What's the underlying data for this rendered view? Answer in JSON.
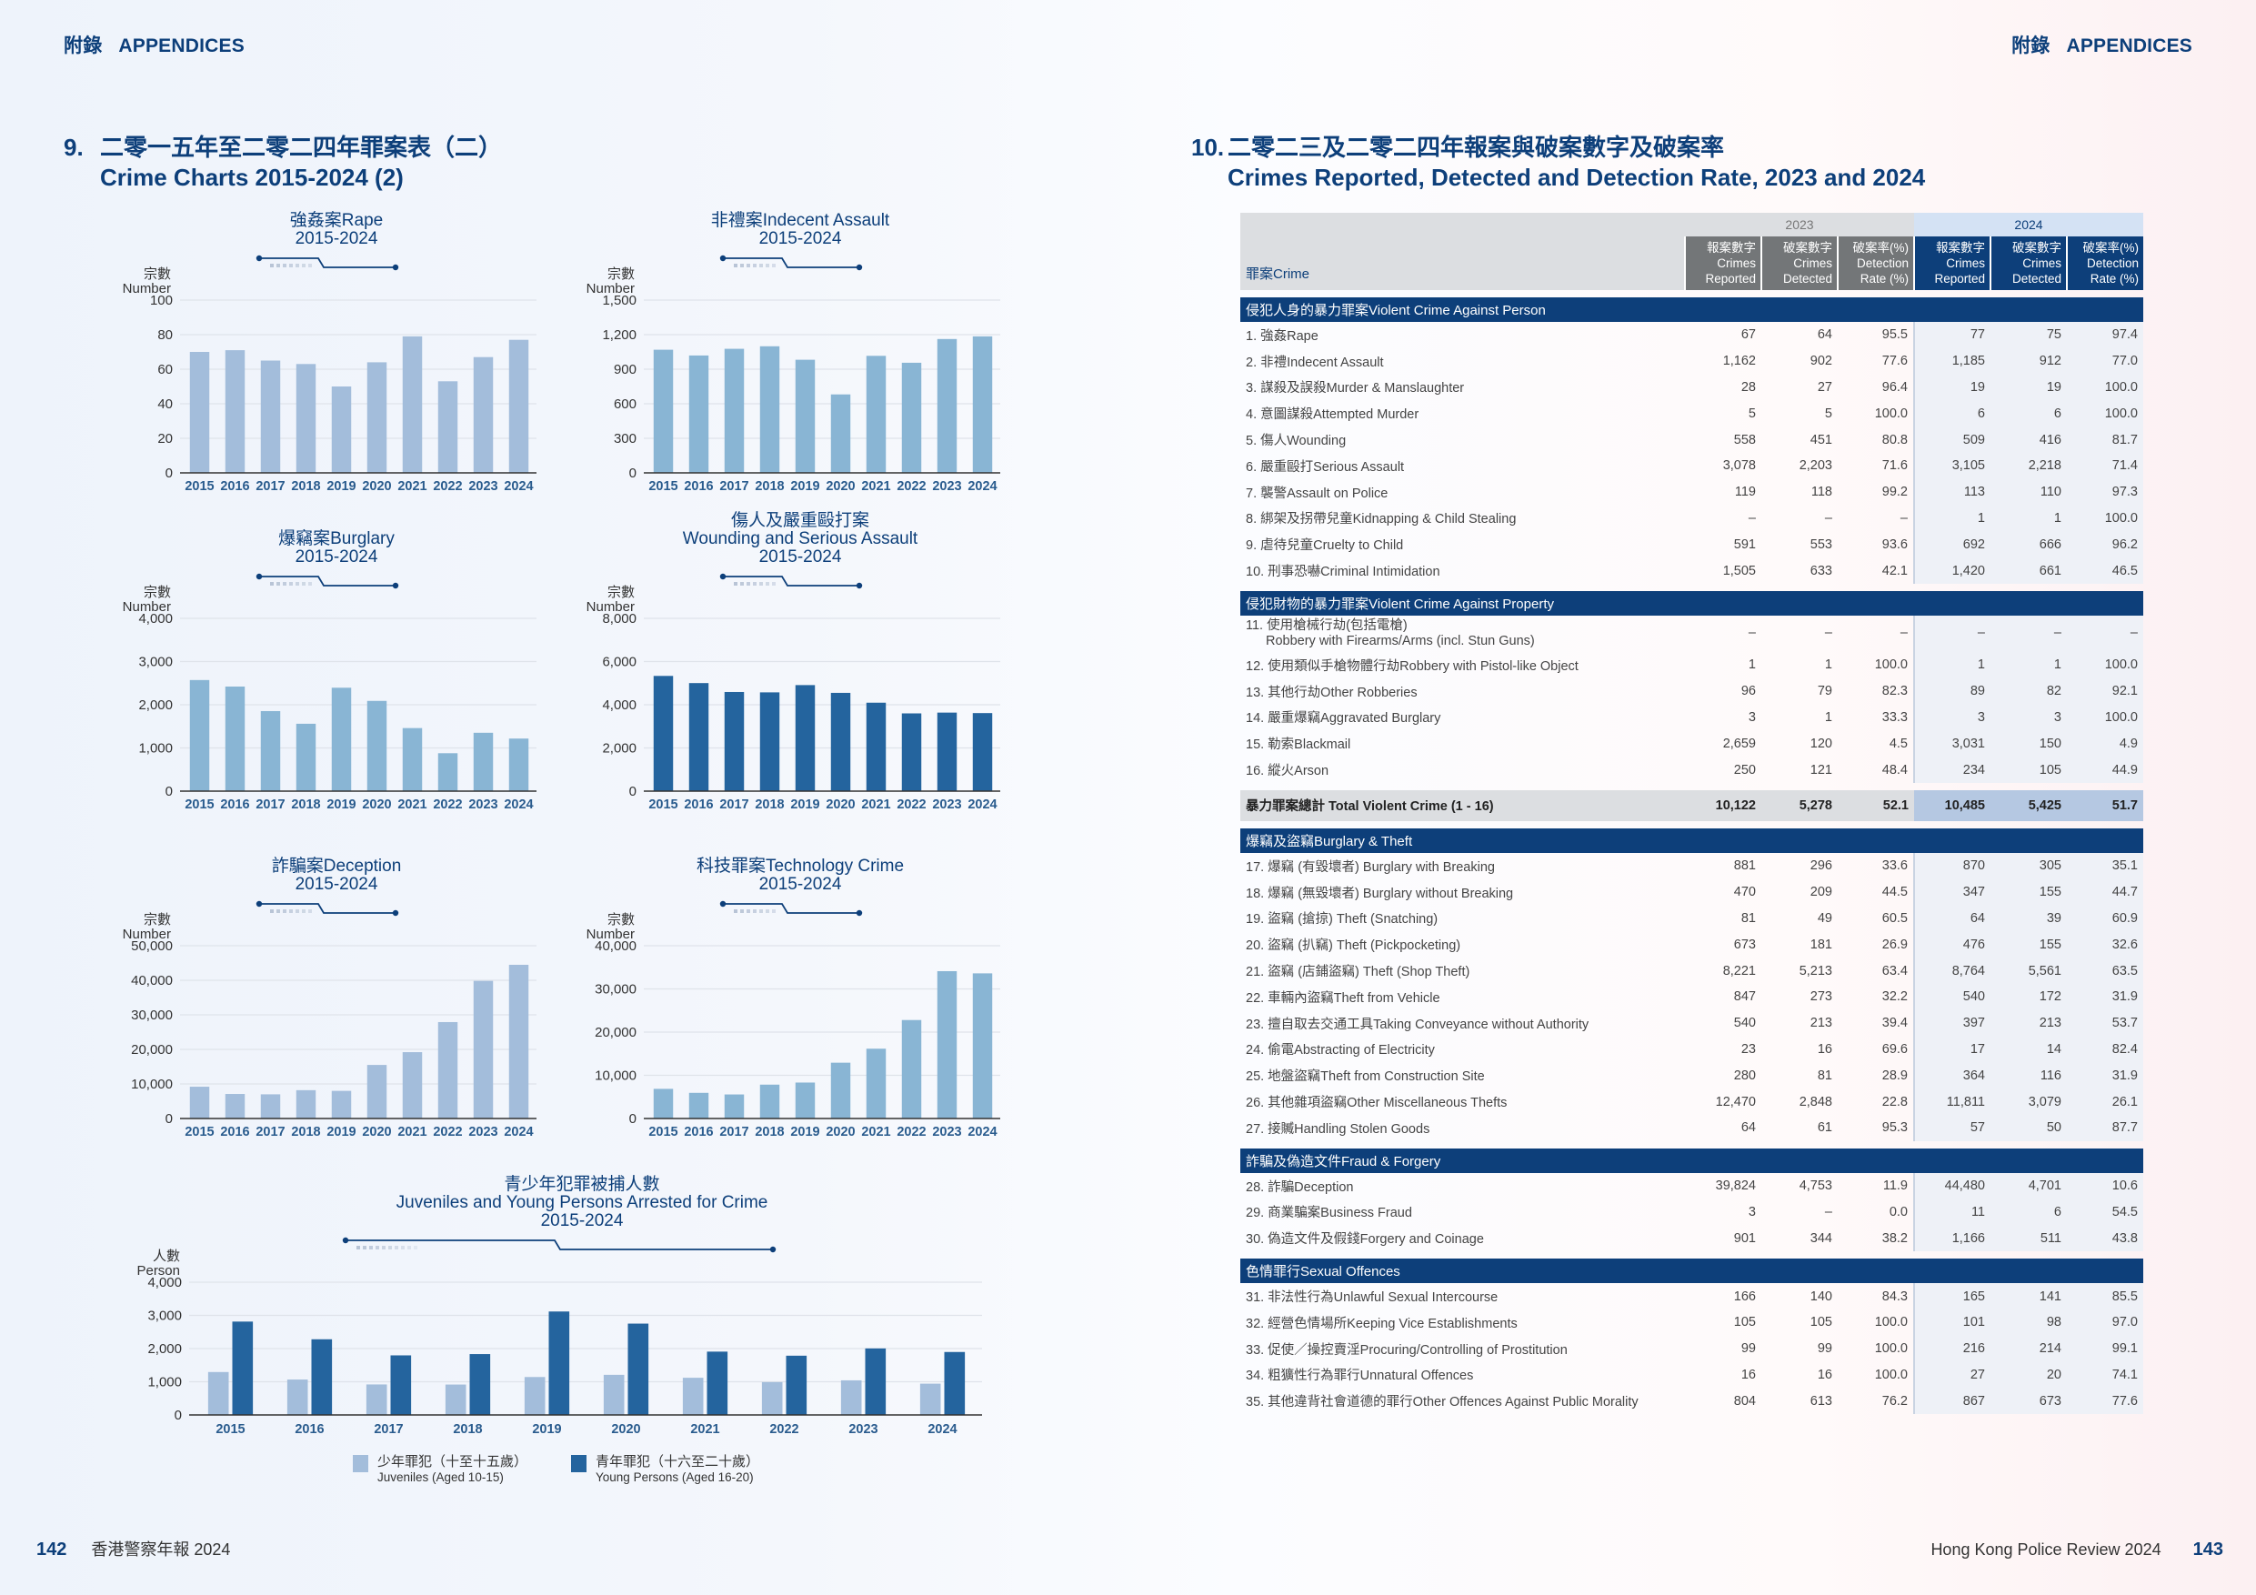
{
  "header": {
    "left": {
      "zh": "附錄",
      "en": "APPENDICES"
    },
    "right": {
      "zh": "附錄",
      "en": "APPENDICES"
    }
  },
  "section9": {
    "number": "9.",
    "title_zh": "二零一五年至二零二四年罪案表（二）",
    "title_en": "Crime Charts 2015-2024 (2)"
  },
  "section10": {
    "number": "10.",
    "title_zh": "二零二三及二零二四年報案與破案數字及破案率",
    "title_en": "Crimes Reported, Detected and Detection Rate, 2023 and 2024"
  },
  "colors": {
    "navy": "#0d3f7a",
    "light_bar": "#a3bddb",
    "mid_bar": "#89b5d4",
    "dark_bar": "#24649e"
  },
  "chart_data": [
    {
      "id": "rape",
      "type": "bar",
      "title_zh": "強姦案Rape",
      "title_en": "",
      "period": "2015-2024",
      "ylabel_zh": "宗數",
      "ylabel_en": "Number",
      "categories": [
        "2015",
        "2016",
        "2017",
        "2018",
        "2019",
        "2020",
        "2021",
        "2022",
        "2023",
        "2024"
      ],
      "values": [
        70,
        71,
        65,
        63,
        50,
        64,
        79,
        53,
        67,
        77
      ],
      "ylim": [
        0,
        100
      ],
      "yticks": [
        0,
        20,
        40,
        60,
        80,
        100
      ],
      "ytick_labels": [
        "0",
        "20",
        "40",
        "60",
        "80",
        "100"
      ],
      "color": "#a3bddb",
      "grid": true
    },
    {
      "id": "indecent",
      "type": "bar",
      "title_zh": "非禮案Indecent Assault",
      "title_en": "",
      "period": "2015-2024",
      "ylabel_zh": "宗數",
      "ylabel_en": "Number",
      "categories": [
        "2015",
        "2016",
        "2017",
        "2018",
        "2019",
        "2020",
        "2021",
        "2022",
        "2023",
        "2024"
      ],
      "values": [
        1069,
        1019,
        1077,
        1099,
        982,
        681,
        1016,
        956,
        1162,
        1185
      ],
      "ylim": [
        0,
        1500
      ],
      "yticks": [
        0,
        300,
        600,
        900,
        1200,
        1500
      ],
      "ytick_labels": [
        "0",
        "300",
        "600",
        "900",
        "1,200",
        "1,500"
      ],
      "color": "#89b5d4",
      "grid": true
    },
    {
      "id": "burglary",
      "type": "bar",
      "title_zh": "爆竊案Burglary",
      "title_en": "",
      "period": "2015-2024",
      "ylabel_zh": "宗數",
      "ylabel_en": "Number",
      "categories": [
        "2015",
        "2016",
        "2017",
        "2018",
        "2019",
        "2020",
        "2021",
        "2022",
        "2023",
        "2024"
      ],
      "values": [
        2572,
        2421,
        1853,
        1560,
        2394,
        2089,
        1460,
        878,
        1351,
        1217
      ],
      "ylim": [
        0,
        4000
      ],
      "yticks": [
        0,
        1000,
        2000,
        3000,
        4000
      ],
      "ytick_labels": [
        "0",
        "1,000",
        "2,000",
        "3,000",
        "4,000"
      ],
      "color": "#89b5d4",
      "grid": true
    },
    {
      "id": "wounding",
      "type": "bar",
      "title_zh": "傷人及嚴重毆打案",
      "title_en": "Wounding and Serious Assault",
      "period": "2015-2024",
      "ylabel_zh": "宗數",
      "ylabel_en": "Number",
      "categories": [
        "2015",
        "2016",
        "2017",
        "2018",
        "2019",
        "2020",
        "2021",
        "2022",
        "2023",
        "2024"
      ],
      "values": [
        5335,
        5003,
        4590,
        4573,
        4910,
        4550,
        4095,
        3600,
        3636,
        3614
      ],
      "ylim": [
        0,
        8000
      ],
      "yticks": [
        0,
        2000,
        4000,
        6000,
        8000
      ],
      "ytick_labels": [
        "0",
        "2,000",
        "4,000",
        "6,000",
        "8,000"
      ],
      "color": "#24649e",
      "grid": true
    },
    {
      "id": "deception",
      "type": "bar",
      "title_zh": "詐騙案Deception",
      "title_en": "",
      "period": "2015-2024",
      "ylabel_zh": "宗數",
      "ylabel_en": "Number",
      "categories": [
        "2015",
        "2016",
        "2017",
        "2018",
        "2019",
        "2020",
        "2021",
        "2022",
        "2023",
        "2024"
      ],
      "values": [
        9200,
        7100,
        7000,
        8200,
        8000,
        15500,
        19200,
        27900,
        39824,
        44480
      ],
      "ylim": [
        0,
        50000
      ],
      "yticks": [
        0,
        10000,
        20000,
        30000,
        40000,
        50000
      ],
      "ytick_labels": [
        "0",
        "10,000",
        "20,000",
        "30,000",
        "40,000",
        "50,000"
      ],
      "color": "#a3bddb",
      "grid": true
    },
    {
      "id": "technology",
      "type": "bar",
      "title_zh": "科技罪案Technology Crime",
      "title_en": "",
      "period": "2015-2024",
      "ylabel_zh": "宗數",
      "ylabel_en": "Number",
      "categories": [
        "2015",
        "2016",
        "2017",
        "2018",
        "2019",
        "2020",
        "2021",
        "2022",
        "2023",
        "2024"
      ],
      "values": [
        6862,
        5939,
        5567,
        7838,
        8322,
        12916,
        16159,
        22797,
        34112,
        33603
      ],
      "ylim": [
        0,
        40000
      ],
      "yticks": [
        0,
        10000,
        20000,
        30000,
        40000
      ],
      "ytick_labels": [
        "0",
        "10,000",
        "20,000",
        "30,000",
        "40,000"
      ],
      "color": "#89b5d4",
      "grid": true
    },
    {
      "id": "juveniles",
      "type": "bar",
      "title_zh": "青少年犯罪被捕人數",
      "title_en": "Juveniles and Young Persons Arrested for Crime",
      "period": "2015-2024",
      "ylabel_zh": "人數",
      "ylabel_en": "Person",
      "categories": [
        "2015",
        "2016",
        "2017",
        "2018",
        "2019",
        "2020",
        "2021",
        "2022",
        "2023",
        "2024"
      ],
      "series": [
        {
          "name_zh": "少年罪犯（十至十五歲）",
          "name_en": "Juveniles (Aged 10-15)",
          "values": [
            1293,
            1067,
            919,
            916,
            1143,
            1209,
            1120,
            990,
            1043,
            943
          ],
          "color": "#a3bddb"
        },
        {
          "name_zh": "青年罪犯（十六至二十歲）",
          "name_en": "Young Persons (Aged 16-20)",
          "values": [
            2813,
            2280,
            1795,
            1834,
            3117,
            2752,
            1908,
            1785,
            2004,
            1897
          ],
          "color": "#24649e"
        }
      ],
      "ylim": [
        0,
        4000
      ],
      "yticks": [
        0,
        1000,
        2000,
        3000,
        4000
      ],
      "ytick_labels": [
        "0",
        "1,000",
        "2,000",
        "3,000",
        "4,000"
      ],
      "legend": "bottom",
      "grid": true
    }
  ],
  "table": {
    "crime_header": "罪案Crime",
    "year_2023": "2023",
    "year_2024": "2024",
    "col_headers": [
      {
        "zh": "報案數字",
        "en1": "Crimes",
        "en2": "Reported"
      },
      {
        "zh": "破案數字",
        "en1": "Crimes",
        "en2": "Detected"
      },
      {
        "zh": "破案率(%)",
        "en1": "Detection",
        "en2": "Rate (%)"
      }
    ],
    "groups": [
      {
        "title": "侵犯人身的暴力罪案Violent Crime Against Person",
        "rows": [
          {
            "label": "1.  強姦Rape",
            "v": [
              "67",
              "64",
              "95.5",
              "77",
              "75",
              "97.4"
            ]
          },
          {
            "label": "2.  非禮Indecent Assault",
            "v": [
              "1,162",
              "902",
              "77.6",
              "1,185",
              "912",
              "77.0"
            ]
          },
          {
            "label": "3.  謀殺及誤殺Murder & Manslaughter",
            "v": [
              "28",
              "27",
              "96.4",
              "19",
              "19",
              "100.0"
            ]
          },
          {
            "label": "4.  意圖謀殺Attempted Murder",
            "v": [
              "5",
              "5",
              "100.0",
              "6",
              "6",
              "100.0"
            ]
          },
          {
            "label": "5.  傷人Wounding",
            "v": [
              "558",
              "451",
              "80.8",
              "509",
              "416",
              "81.7"
            ]
          },
          {
            "label": "6.  嚴重毆打Serious Assault",
            "v": [
              "3,078",
              "2,203",
              "71.6",
              "3,105",
              "2,218",
              "71.4"
            ]
          },
          {
            "label": "7.  襲警Assault on Police",
            "v": [
              "119",
              "118",
              "99.2",
              "113",
              "110",
              "97.3"
            ]
          },
          {
            "label": "8.  綁架及拐帶兒童Kidnapping & Child Stealing",
            "v": [
              "–",
              "–",
              "–",
              "1",
              "1",
              "100.0"
            ]
          },
          {
            "label": "9.  虐待兒童Cruelty to Child",
            "v": [
              "591",
              "553",
              "93.6",
              "692",
              "666",
              "96.2"
            ]
          },
          {
            "label": "10. 刑事恐嚇Criminal Intimidation",
            "v": [
              "1,505",
              "633",
              "42.1",
              "1,420",
              "661",
              "46.5"
            ]
          }
        ]
      },
      {
        "title": "侵犯財物的暴力罪案Violent Crime Against Property",
        "rows": [
          {
            "label": "11. 使用槍械行劫(包括電槍)",
            "label2": "Robbery with Firearms/Arms (incl. Stun Guns)",
            "v": [
              "–",
              "–",
              "–",
              "–",
              "–",
              "–"
            ]
          },
          {
            "label": "12. 使用類似手槍物體行劫Robbery with Pistol-like Object",
            "v": [
              "1",
              "1",
              "100.0",
              "1",
              "1",
              "100.0"
            ]
          },
          {
            "label": "13. 其他行劫Other Robberies",
            "v": [
              "96",
              "79",
              "82.3",
              "89",
              "82",
              "92.1"
            ]
          },
          {
            "label": "14. 嚴重爆竊Aggravated Burglary",
            "v": [
              "3",
              "1",
              "33.3",
              "3",
              "3",
              "100.0"
            ]
          },
          {
            "label": "15. 勒索Blackmail",
            "v": [
              "2,659",
              "120",
              "4.5",
              "3,031",
              "150",
              "4.9"
            ]
          },
          {
            "label": "16. 縱火Arson",
            "v": [
              "250",
              "121",
              "48.4",
              "234",
              "105",
              "44.9"
            ]
          }
        ],
        "total": {
          "label": "暴力罪案總計 Total Violent Crime (1 - 16)",
          "v": [
            "10,122",
            "5,278",
            "52.1",
            "10,485",
            "5,425",
            "51.7"
          ]
        }
      },
      {
        "title": "爆竊及盜竊Burglary & Theft",
        "rows": [
          {
            "label": "17. 爆竊 (有毀壞者) Burglary with Breaking",
            "v": [
              "881",
              "296",
              "33.6",
              "870",
              "305",
              "35.1"
            ]
          },
          {
            "label": "18. 爆竊 (無毀壞者) Burglary without Breaking",
            "v": [
              "470",
              "209",
              "44.5",
              "347",
              "155",
              "44.7"
            ]
          },
          {
            "label": "19. 盜竊 (搶掠) Theft (Snatching)",
            "v": [
              "81",
              "49",
              "60.5",
              "64",
              "39",
              "60.9"
            ]
          },
          {
            "label": "20. 盜竊 (扒竊) Theft (Pickpocketing)",
            "v": [
              "673",
              "181",
              "26.9",
              "476",
              "155",
              "32.6"
            ]
          },
          {
            "label": "21. 盜竊 (店鋪盜竊) Theft (Shop Theft)",
            "v": [
              "8,221",
              "5,213",
              "63.4",
              "8,764",
              "5,561",
              "63.5"
            ]
          },
          {
            "label": "22. 車輛內盜竊Theft from Vehicle",
            "v": [
              "847",
              "273",
              "32.2",
              "540",
              "172",
              "31.9"
            ]
          },
          {
            "label": "23. 擅自取去交通工具Taking Conveyance without Authority",
            "v": [
              "540",
              "213",
              "39.4",
              "397",
              "213",
              "53.7"
            ]
          },
          {
            "label": "24. 偷電Abstracting of Electricity",
            "v": [
              "23",
              "16",
              "69.6",
              "17",
              "14",
              "82.4"
            ]
          },
          {
            "label": "25. 地盤盜竊Theft from Construction Site",
            "v": [
              "280",
              "81",
              "28.9",
              "364",
              "116",
              "31.9"
            ]
          },
          {
            "label": "26. 其他雜項盜竊Other Miscellaneous Thefts",
            "v": [
              "12,470",
              "2,848",
              "22.8",
              "11,811",
              "3,079",
              "26.1"
            ]
          },
          {
            "label": "27. 接贓Handling Stolen Goods",
            "v": [
              "64",
              "61",
              "95.3",
              "57",
              "50",
              "87.7"
            ]
          }
        ]
      },
      {
        "title": "詐騙及偽造文件Fraud & Forgery",
        "rows": [
          {
            "label": "28. 詐騙Deception",
            "v": [
              "39,824",
              "4,753",
              "11.9",
              "44,480",
              "4,701",
              "10.6"
            ]
          },
          {
            "label": "29. 商業騙案Business Fraud",
            "v": [
              "3",
              "–",
              "0.0",
              "11",
              "6",
              "54.5"
            ]
          },
          {
            "label": "30. 偽造文件及假錢Forgery and Coinage",
            "v": [
              "901",
              "344",
              "38.2",
              "1,166",
              "511",
              "43.8"
            ]
          }
        ]
      },
      {
        "title": "色情罪行Sexual Offences",
        "rows": [
          {
            "label": "31. 非法性行為Unlawful Sexual Intercourse",
            "v": [
              "166",
              "140",
              "84.3",
              "165",
              "141",
              "85.5"
            ]
          },
          {
            "label": "32. 經營色情場所Keeping Vice Establishments",
            "v": [
              "105",
              "105",
              "100.0",
              "101",
              "98",
              "97.0"
            ]
          },
          {
            "label": "33. 促使／操控賣淫Procuring/Controlling of Prostitution",
            "v": [
              "99",
              "99",
              "100.0",
              "216",
              "214",
              "99.1"
            ]
          },
          {
            "label": "34. 粗獷性行為罪行Unnatural Offences",
            "v": [
              "16",
              "16",
              "100.0",
              "27",
              "20",
              "74.1"
            ]
          },
          {
            "label": "35. 其他違背社會道德的罪行Other Offences Against Public Morality",
            "v": [
              "804",
              "613",
              "76.2",
              "867",
              "673",
              "77.6"
            ]
          }
        ]
      }
    ]
  },
  "footer": {
    "left_page": "142",
    "left_title": "香港警察年報 2024",
    "right_title": "Hong Kong Police Review 2024",
    "right_page": "143"
  }
}
